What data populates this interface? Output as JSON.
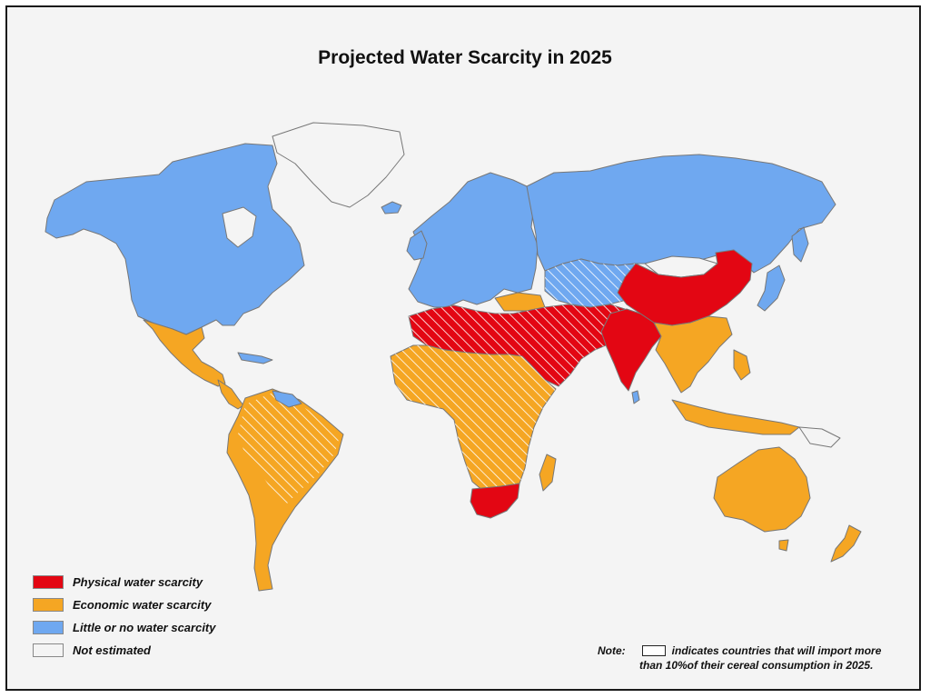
{
  "title": "Projected Water Scarcity in 2025",
  "legend": {
    "items": [
      {
        "label": "Physical water scarcity",
        "color": "#e30613"
      },
      {
        "label": "Economic water scarcity",
        "color": "#f5a623"
      },
      {
        "label": "Little or no water scarcity",
        "color": "#6fa8f0"
      },
      {
        "label": "Not estimated",
        "color": "#f4f4f4"
      }
    ]
  },
  "note": {
    "key": "Note:",
    "line1": "indicates countries that will import more",
    "line2": "than 10%of their cereal consumption in 2025."
  },
  "colors": {
    "physical": "#e30613",
    "economic": "#f5a623",
    "little": "#6fa8f0",
    "not_estimated": "#f4f4f4",
    "border": "#777777"
  }
}
